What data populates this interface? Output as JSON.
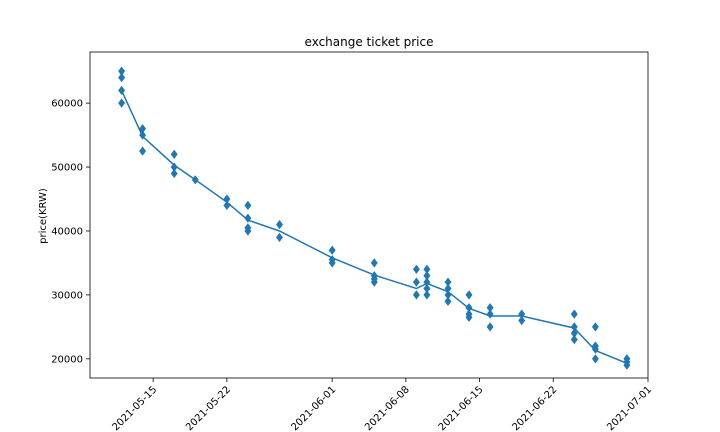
{
  "chart_data": {
    "type": "scatter",
    "title": "exchange ticket price",
    "xlabel": "",
    "ylabel": "price(KRW)",
    "x_type": "date",
    "xlim": [
      "2021-05-09",
      "2021-07-01"
    ],
    "ylim": [
      17000,
      68000
    ],
    "x_ticks": [
      "2021-05-15",
      "2021-05-22",
      "2021-06-01",
      "2021-06-08",
      "2021-06-15",
      "2021-06-22",
      "2021-07-01"
    ],
    "y_ticks": [
      20000,
      30000,
      40000,
      50000,
      60000
    ],
    "grid": false,
    "color": "#1f77b4",
    "series": [
      {
        "kind": "points",
        "marker": "diamond",
        "points": [
          {
            "x": "2021-05-12",
            "y": 65000
          },
          {
            "x": "2021-05-12",
            "y": 64000
          },
          {
            "x": "2021-05-12",
            "y": 62000
          },
          {
            "x": "2021-05-12",
            "y": 60000
          },
          {
            "x": "2021-05-14",
            "y": 56000
          },
          {
            "x": "2021-05-14",
            "y": 55000
          },
          {
            "x": "2021-05-14",
            "y": 52500
          },
          {
            "x": "2021-05-17",
            "y": 52000
          },
          {
            "x": "2021-05-17",
            "y": 50000
          },
          {
            "x": "2021-05-17",
            "y": 49000
          },
          {
            "x": "2021-05-19",
            "y": 48000
          },
          {
            "x": "2021-05-22",
            "y": 45000
          },
          {
            "x": "2021-05-22",
            "y": 44000
          },
          {
            "x": "2021-05-24",
            "y": 44000
          },
          {
            "x": "2021-05-24",
            "y": 42000
          },
          {
            "x": "2021-05-24",
            "y": 40500
          },
          {
            "x": "2021-05-24",
            "y": 40000
          },
          {
            "x": "2021-05-27",
            "y": 41000
          },
          {
            "x": "2021-05-27",
            "y": 39000
          },
          {
            "x": "2021-06-01",
            "y": 37000
          },
          {
            "x": "2021-06-01",
            "y": 35500
          },
          {
            "x": "2021-06-01",
            "y": 35000
          },
          {
            "x": "2021-06-05",
            "y": 35000
          },
          {
            "x": "2021-06-05",
            "y": 33000
          },
          {
            "x": "2021-06-05",
            "y": 32500
          },
          {
            "x": "2021-06-05",
            "y": 32000
          },
          {
            "x": "2021-06-09",
            "y": 34000
          },
          {
            "x": "2021-06-09",
            "y": 32000
          },
          {
            "x": "2021-06-09",
            "y": 30000
          },
          {
            "x": "2021-06-10",
            "y": 34000
          },
          {
            "x": "2021-06-10",
            "y": 33000
          },
          {
            "x": "2021-06-10",
            "y": 32000
          },
          {
            "x": "2021-06-10",
            "y": 31000
          },
          {
            "x": "2021-06-10",
            "y": 30000
          },
          {
            "x": "2021-06-12",
            "y": 32000
          },
          {
            "x": "2021-06-12",
            "y": 31000
          },
          {
            "x": "2021-06-12",
            "y": 30000
          },
          {
            "x": "2021-06-12",
            "y": 29000
          },
          {
            "x": "2021-06-14",
            "y": 30000
          },
          {
            "x": "2021-06-14",
            "y": 28000
          },
          {
            "x": "2021-06-14",
            "y": 27000
          },
          {
            "x": "2021-06-14",
            "y": 26500
          },
          {
            "x": "2021-06-16",
            "y": 28000
          },
          {
            "x": "2021-06-16",
            "y": 27000
          },
          {
            "x": "2021-06-16",
            "y": 25000
          },
          {
            "x": "2021-06-19",
            "y": 27000
          },
          {
            "x": "2021-06-19",
            "y": 26000
          },
          {
            "x": "2021-06-24",
            "y": 27000
          },
          {
            "x": "2021-06-24",
            "y": 25000
          },
          {
            "x": "2021-06-24",
            "y": 24000
          },
          {
            "x": "2021-06-24",
            "y": 23000
          },
          {
            "x": "2021-06-26",
            "y": 25000
          },
          {
            "x": "2021-06-26",
            "y": 22000
          },
          {
            "x": "2021-06-26",
            "y": 21500
          },
          {
            "x": "2021-06-26",
            "y": 20000
          },
          {
            "x": "2021-06-29",
            "y": 20000
          },
          {
            "x": "2021-06-29",
            "y": 19500
          },
          {
            "x": "2021-06-29",
            "y": 19000
          }
        ]
      },
      {
        "kind": "line",
        "points": [
          {
            "x": "2021-05-12",
            "y": 62000
          },
          {
            "x": "2021-05-14",
            "y": 54800
          },
          {
            "x": "2021-05-17",
            "y": 50300
          },
          {
            "x": "2021-05-19",
            "y": 48000
          },
          {
            "x": "2021-05-22",
            "y": 44500
          },
          {
            "x": "2021-05-24",
            "y": 41700
          },
          {
            "x": "2021-05-27",
            "y": 40000
          },
          {
            "x": "2021-06-01",
            "y": 35800
          },
          {
            "x": "2021-06-05",
            "y": 33100
          },
          {
            "x": "2021-06-09",
            "y": 31000
          },
          {
            "x": "2021-06-10",
            "y": 31800
          },
          {
            "x": "2021-06-12",
            "y": 30500
          },
          {
            "x": "2021-06-14",
            "y": 27900
          },
          {
            "x": "2021-06-16",
            "y": 26700
          },
          {
            "x": "2021-06-19",
            "y": 26700
          },
          {
            "x": "2021-06-24",
            "y": 24800
          },
          {
            "x": "2021-06-26",
            "y": 21300
          },
          {
            "x": "2021-06-29",
            "y": 19300
          }
        ]
      }
    ]
  }
}
